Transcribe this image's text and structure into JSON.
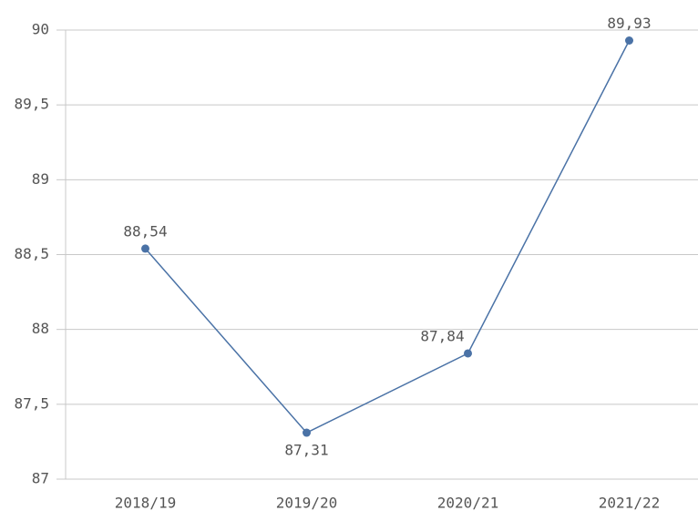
{
  "chart_data": {
    "type": "line",
    "categories": [
      "2018/19",
      "2019/20",
      "2020/21",
      "2021/22"
    ],
    "series": [
      {
        "name": null,
        "color": "#4a72a6",
        "values": [
          88.54,
          87.31,
          87.84,
          89.93
        ],
        "value_labels": [
          "88,54",
          "87,31",
          "87,84",
          "89,93"
        ]
      }
    ],
    "ylim": [
      87,
      90
    ],
    "yticks": [
      87,
      {
        "value": 87.5,
        "label": "87,5"
      },
      88,
      {
        "value": 88.5,
        "label": "88,5"
      },
      89,
      {
        "value": 89.5,
        "label": "89,5"
      },
      90
    ],
    "grid": true
  }
}
